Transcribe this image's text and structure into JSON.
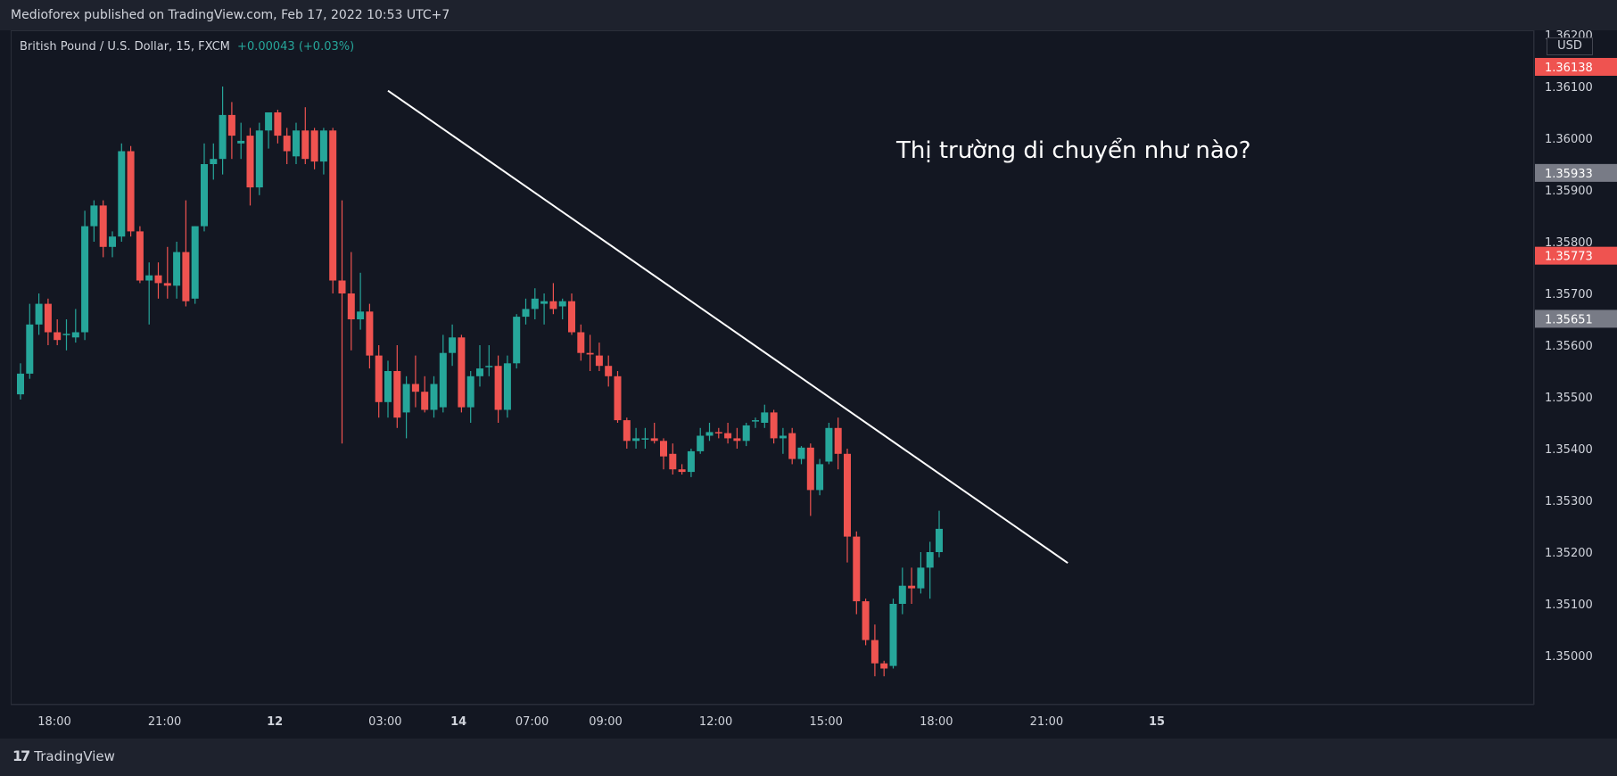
{
  "header": {
    "publisher": "Medioforex published on TradingView.com, Feb 17, 2022 10:53 UTC+7"
  },
  "legend": {
    "symbol": "British Pound / U.S. Dollar, 15, FXCM",
    "change": "+0.00043 (+0.03%)"
  },
  "price_axis": {
    "currency": "USD",
    "ticks": [
      "1.36200",
      "1.36100",
      "1.36000",
      "1.35900",
      "1.35800",
      "1.35700",
      "1.35600",
      "1.35500",
      "1.35400",
      "1.35300",
      "1.35200",
      "1.35100",
      "1.35000"
    ],
    "badges": [
      {
        "label": "1.36138",
        "value": 1.36138,
        "color": "#ef5350"
      },
      {
        "label": "1.35933",
        "value": 1.35933,
        "color": "#787b86"
      },
      {
        "label": "1.35773",
        "value": 1.35773,
        "color": "#ef5350"
      },
      {
        "label": "1.35651",
        "value": 1.35651,
        "color": "#787b86"
      }
    ]
  },
  "time_axis": {
    "labels": [
      {
        "text": "18:00",
        "t": 0
      },
      {
        "text": "21:00",
        "t": 12
      },
      {
        "text": "12",
        "t": 24
      },
      {
        "text": "03:00",
        "t": 36
      },
      {
        "text": "14",
        "t": 44
      },
      {
        "text": "07:00",
        "t": 52
      },
      {
        "text": "09:00",
        "t": 60
      },
      {
        "text": "12:00",
        "t": 72
      },
      {
        "text": "15:00",
        "t": 84
      },
      {
        "text": "18:00",
        "t": 96
      },
      {
        "text": "21:00",
        "t": 108
      },
      {
        "text": "15",
        "t": 120
      }
    ]
  },
  "annotation": {
    "text": "Thị trường di chuyển như nào?"
  },
  "brand": {
    "name": "TradingView"
  },
  "colors": {
    "up": "#26a69a",
    "down": "#ef5350",
    "background": "#131722",
    "axis_text": "#d1d4dc",
    "trendline": "#ffffff"
  },
  "chart_data": {
    "type": "candlestick",
    "title": "British Pound / U.S. Dollar, 15, FXCM",
    "ylim": [
      1.3494,
      1.3622
    ],
    "trendline": {
      "from": {
        "t": 40,
        "price": 1.36092
      },
      "to": {
        "t": 114,
        "price": 1.35179
      }
    },
    "candles": [
      {
        "o": 1.35505,
        "h": 1.35565,
        "l": 1.35495,
        "c": 1.35545
      },
      {
        "o": 1.35545,
        "h": 1.3568,
        "l": 1.35535,
        "c": 1.3564
      },
      {
        "o": 1.3564,
        "h": 1.357,
        "l": 1.3562,
        "c": 1.3568
      },
      {
        "o": 1.3568,
        "h": 1.3569,
        "l": 1.356,
        "c": 1.35625
      },
      {
        "o": 1.35625,
        "h": 1.3565,
        "l": 1.356,
        "c": 1.3561
      },
      {
        "o": 1.3562,
        "h": 1.3565,
        "l": 1.3559,
        "c": 1.35622
      },
      {
        "o": 1.35615,
        "h": 1.3567,
        "l": 1.35605,
        "c": 1.35625
      },
      {
        "o": 1.35625,
        "h": 1.3586,
        "l": 1.3561,
        "c": 1.3583
      },
      {
        "o": 1.3583,
        "h": 1.3588,
        "l": 1.358,
        "c": 1.3587
      },
      {
        "o": 1.3587,
        "h": 1.3588,
        "l": 1.3577,
        "c": 1.3579
      },
      {
        "o": 1.3579,
        "h": 1.3582,
        "l": 1.3577,
        "c": 1.3581
      },
      {
        "o": 1.3581,
        "h": 1.3599,
        "l": 1.358,
        "c": 1.35975
      },
      {
        "o": 1.35975,
        "h": 1.35985,
        "l": 1.3581,
        "c": 1.3582
      },
      {
        "o": 1.3582,
        "h": 1.3583,
        "l": 1.3572,
        "c": 1.35725
      },
      {
        "o": 1.35725,
        "h": 1.3576,
        "l": 1.3564,
        "c": 1.35735
      },
      {
        "o": 1.35735,
        "h": 1.3576,
        "l": 1.3569,
        "c": 1.3572
      },
      {
        "o": 1.3572,
        "h": 1.3579,
        "l": 1.3569,
        "c": 1.35715
      },
      {
        "o": 1.35715,
        "h": 1.358,
        "l": 1.3569,
        "c": 1.3578
      },
      {
        "o": 1.3578,
        "h": 1.3588,
        "l": 1.35675,
        "c": 1.35685
      },
      {
        "o": 1.3569,
        "h": 1.3583,
        "l": 1.3568,
        "c": 1.3583
      },
      {
        "o": 1.3583,
        "h": 1.3599,
        "l": 1.3582,
        "c": 1.3595
      },
      {
        "o": 1.3595,
        "h": 1.3599,
        "l": 1.3592,
        "c": 1.3596
      },
      {
        "o": 1.3596,
        "h": 1.361,
        "l": 1.3593,
        "c": 1.36045
      },
      {
        "o": 1.36045,
        "h": 1.3607,
        "l": 1.3596,
        "c": 1.36005
      },
      {
        "o": 1.3599,
        "h": 1.3603,
        "l": 1.3596,
        "c": 1.35995
      },
      {
        "o": 1.36005,
        "h": 1.3602,
        "l": 1.3587,
        "c": 1.35905
      },
      {
        "o": 1.35905,
        "h": 1.3603,
        "l": 1.3589,
        "c": 1.36015
      },
      {
        "o": 1.36015,
        "h": 1.3605,
        "l": 1.3598,
        "c": 1.3605
      },
      {
        "o": 1.3605,
        "h": 1.36055,
        "l": 1.3599,
        "c": 1.36005
      },
      {
        "o": 1.36005,
        "h": 1.3602,
        "l": 1.3595,
        "c": 1.35975
      },
      {
        "o": 1.35965,
        "h": 1.3603,
        "l": 1.3595,
        "c": 1.36015
      },
      {
        "o": 1.36015,
        "h": 1.3606,
        "l": 1.3595,
        "c": 1.3596
      },
      {
        "o": 1.36015,
        "h": 1.3602,
        "l": 1.3594,
        "c": 1.35955
      },
      {
        "o": 1.35955,
        "h": 1.3602,
        "l": 1.3593,
        "c": 1.36015
      },
      {
        "o": 1.36015,
        "h": 1.3602,
        "l": 1.357,
        "c": 1.35725
      },
      {
        "o": 1.35725,
        "h": 1.3588,
        "l": 1.3541,
        "c": 1.357
      },
      {
        "o": 1.357,
        "h": 1.3578,
        "l": 1.3559,
        "c": 1.3565
      },
      {
        "o": 1.3565,
        "h": 1.3574,
        "l": 1.3563,
        "c": 1.35665
      },
      {
        "o": 1.35665,
        "h": 1.3568,
        "l": 1.35555,
        "c": 1.3558
      },
      {
        "o": 1.3558,
        "h": 1.356,
        "l": 1.3546,
        "c": 1.3549
      },
      {
        "o": 1.3549,
        "h": 1.3557,
        "l": 1.3546,
        "c": 1.3555
      },
      {
        "o": 1.3555,
        "h": 1.356,
        "l": 1.3544,
        "c": 1.3546
      },
      {
        "o": 1.3547,
        "h": 1.3554,
        "l": 1.3542,
        "c": 1.35525
      },
      {
        "o": 1.35525,
        "h": 1.3558,
        "l": 1.3548,
        "c": 1.3551
      },
      {
        "o": 1.3551,
        "h": 1.3554,
        "l": 1.3547,
        "c": 1.35475
      },
      {
        "o": 1.35475,
        "h": 1.3554,
        "l": 1.3546,
        "c": 1.35525
      },
      {
        "o": 1.3548,
        "h": 1.3562,
        "l": 1.3547,
        "c": 1.35585
      },
      {
        "o": 1.35585,
        "h": 1.3564,
        "l": 1.3556,
        "c": 1.35615
      },
      {
        "o": 1.35615,
        "h": 1.3562,
        "l": 1.3547,
        "c": 1.3548
      },
      {
        "o": 1.3548,
        "h": 1.3555,
        "l": 1.3545,
        "c": 1.3554
      },
      {
        "o": 1.3554,
        "h": 1.356,
        "l": 1.3552,
        "c": 1.35555
      },
      {
        "o": 1.3556,
        "h": 1.356,
        "l": 1.3554,
        "c": 1.3556
      },
      {
        "o": 1.3556,
        "h": 1.3558,
        "l": 1.3545,
        "c": 1.35475
      },
      {
        "o": 1.35475,
        "h": 1.3558,
        "l": 1.3546,
        "c": 1.35565
      },
      {
        "o": 1.35565,
        "h": 1.3566,
        "l": 1.35555,
        "c": 1.35655
      },
      {
        "o": 1.35655,
        "h": 1.3569,
        "l": 1.3564,
        "c": 1.3567
      },
      {
        "o": 1.3567,
        "h": 1.3571,
        "l": 1.3565,
        "c": 1.3569
      },
      {
        "o": 1.3568,
        "h": 1.357,
        "l": 1.3564,
        "c": 1.35685
      },
      {
        "o": 1.35685,
        "h": 1.3572,
        "l": 1.3566,
        "c": 1.3567
      },
      {
        "o": 1.35675,
        "h": 1.3569,
        "l": 1.3565,
        "c": 1.35685
      },
      {
        "o": 1.35685,
        "h": 1.357,
        "l": 1.3562,
        "c": 1.35625
      },
      {
        "o": 1.35625,
        "h": 1.3564,
        "l": 1.3557,
        "c": 1.35585
      },
      {
        "o": 1.35585,
        "h": 1.3562,
        "l": 1.3555,
        "c": 1.35582
      },
      {
        "o": 1.3558,
        "h": 1.35605,
        "l": 1.3555,
        "c": 1.3556
      },
      {
        "o": 1.3556,
        "h": 1.3558,
        "l": 1.3552,
        "c": 1.3554
      },
      {
        "o": 1.3554,
        "h": 1.3555,
        "l": 1.3545,
        "c": 1.35455
      },
      {
        "o": 1.35455,
        "h": 1.3546,
        "l": 1.354,
        "c": 1.35415
      },
      {
        "o": 1.35415,
        "h": 1.3544,
        "l": 1.354,
        "c": 1.3542
      },
      {
        "o": 1.3542,
        "h": 1.3544,
        "l": 1.354,
        "c": 1.3542
      },
      {
        "o": 1.3542,
        "h": 1.3545,
        "l": 1.3541,
        "c": 1.35415
      },
      {
        "o": 1.35415,
        "h": 1.3542,
        "l": 1.3536,
        "c": 1.35385
      },
      {
        "o": 1.3539,
        "h": 1.3541,
        "l": 1.3535,
        "c": 1.3536
      },
      {
        "o": 1.3536,
        "h": 1.3537,
        "l": 1.3535,
        "c": 1.35355
      },
      {
        "o": 1.35355,
        "h": 1.354,
        "l": 1.35345,
        "c": 1.35395
      },
      {
        "o": 1.35395,
        "h": 1.3544,
        "l": 1.3539,
        "c": 1.35425
      },
      {
        "o": 1.35425,
        "h": 1.3545,
        "l": 1.35415,
        "c": 1.35432
      },
      {
        "o": 1.35432,
        "h": 1.3544,
        "l": 1.3542,
        "c": 1.3543
      },
      {
        "o": 1.3543,
        "h": 1.3545,
        "l": 1.3541,
        "c": 1.3542
      },
      {
        "o": 1.3542,
        "h": 1.3544,
        "l": 1.354,
        "c": 1.35415
      },
      {
        "o": 1.35415,
        "h": 1.3545,
        "l": 1.35405,
        "c": 1.35445
      },
      {
        "o": 1.35455,
        "h": 1.3546,
        "l": 1.3544,
        "c": 1.35455
      },
      {
        "o": 1.3545,
        "h": 1.35485,
        "l": 1.3544,
        "c": 1.3547
      },
      {
        "o": 1.3547,
        "h": 1.35475,
        "l": 1.3541,
        "c": 1.3542
      },
      {
        "o": 1.3542,
        "h": 1.3544,
        "l": 1.3539,
        "c": 1.35425
      },
      {
        "o": 1.3543,
        "h": 1.3544,
        "l": 1.3537,
        "c": 1.3538
      },
      {
        "o": 1.3538,
        "h": 1.35405,
        "l": 1.3537,
        "c": 1.35402
      },
      {
        "o": 1.35402,
        "h": 1.3541,
        "l": 1.3527,
        "c": 1.3532
      },
      {
        "o": 1.3532,
        "h": 1.3538,
        "l": 1.3531,
        "c": 1.3537
      },
      {
        "o": 1.35375,
        "h": 1.3545,
        "l": 1.3537,
        "c": 1.3544
      },
      {
        "o": 1.3544,
        "h": 1.3546,
        "l": 1.3536,
        "c": 1.3539
      },
      {
        "o": 1.3539,
        "h": 1.354,
        "l": 1.3518,
        "c": 1.3523
      },
      {
        "o": 1.3523,
        "h": 1.3524,
        "l": 1.3508,
        "c": 1.35105
      },
      {
        "o": 1.35105,
        "h": 1.3511,
        "l": 1.3502,
        "c": 1.3503
      },
      {
        "o": 1.3503,
        "h": 1.3506,
        "l": 1.3496,
        "c": 1.34985
      },
      {
        "o": 1.34985,
        "h": 1.3499,
        "l": 1.3496,
        "c": 1.34975
      },
      {
        "o": 1.3498,
        "h": 1.3511,
        "l": 1.34975,
        "c": 1.351
      },
      {
        "o": 1.351,
        "h": 1.3517,
        "l": 1.3508,
        "c": 1.35135
      },
      {
        "o": 1.35135,
        "h": 1.3517,
        "l": 1.351,
        "c": 1.3513
      },
      {
        "o": 1.3513,
        "h": 1.352,
        "l": 1.3512,
        "c": 1.3517
      },
      {
        "o": 1.3517,
        "h": 1.3522,
        "l": 1.3511,
        "c": 1.352
      },
      {
        "o": 1.352,
        "h": 1.3528,
        "l": 1.3519,
        "c": 1.35245
      }
    ]
  }
}
